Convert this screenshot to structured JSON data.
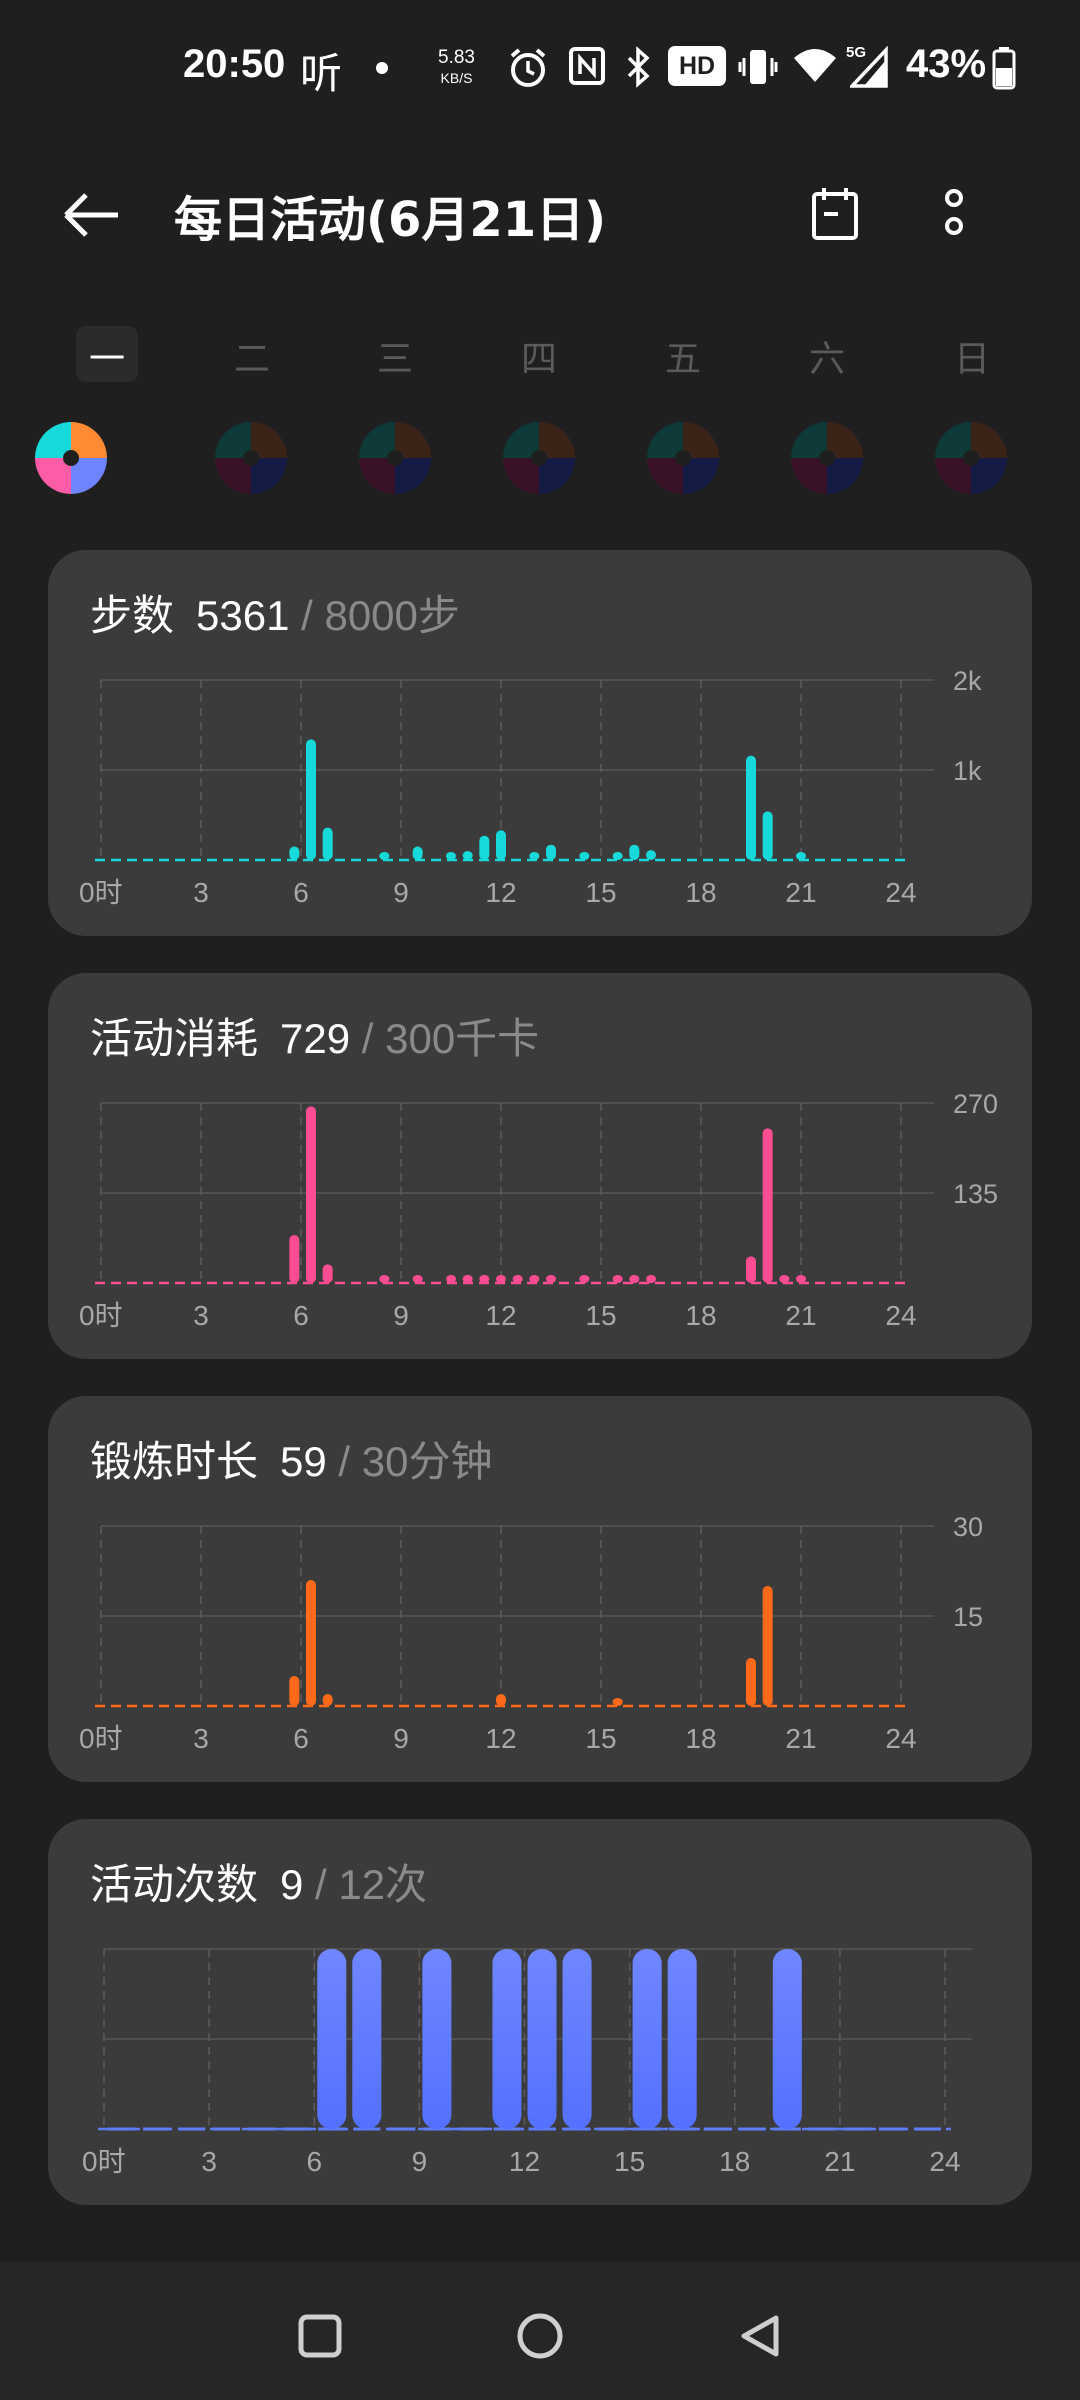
{
  "status_bar": {
    "time": "20:50",
    "ting_glyph": "听",
    "net_speed_value": "5.83",
    "net_speed_unit": "KB/S",
    "hd_badge": "HD",
    "signal_label": "5G",
    "battery": "43%",
    "icons": [
      "alarm-icon",
      "nfc-icon",
      "bluetooth-icon",
      "hd-icon",
      "vibrate-icon",
      "wifi-icon",
      "signal-icon",
      "battery-icon"
    ]
  },
  "header": {
    "title": "每日活动(6月21日)"
  },
  "week": {
    "days": [
      "一",
      "二",
      "三",
      "四",
      "五",
      "六",
      "日"
    ],
    "selected_index": 0
  },
  "cards": [
    {
      "label": "步数",
      "value": "5361",
      "goal": " / 8000步",
      "color": "#18d9d9",
      "chart_data": {
        "type": "bar",
        "x_ticks": [
          "0时",
          "3",
          "6",
          "9",
          "12",
          "15",
          "18",
          "21",
          "24"
        ],
        "y_ticks": [
          "2k",
          "1k"
        ],
        "ylim": [
          0,
          2000
        ],
        "hours": [
          0,
          1,
          2,
          3,
          4,
          5,
          6,
          7,
          8,
          9,
          10,
          11,
          12,
          13,
          14,
          15,
          16,
          17,
          18,
          19,
          20,
          21,
          22,
          23
        ],
        "values": [
          [
            5.8,
            150
          ],
          [
            6.3,
            1340
          ],
          [
            6.8,
            360
          ],
          [
            8.5,
            40
          ],
          [
            9.5,
            150
          ],
          [
            10.5,
            60
          ],
          [
            11,
            100
          ],
          [
            11.5,
            270
          ],
          [
            12,
            330
          ],
          [
            13,
            50
          ],
          [
            13.5,
            170
          ],
          [
            14.5,
            60
          ],
          [
            15.5,
            90
          ],
          [
            16,
            170
          ],
          [
            16.5,
            110
          ],
          [
            19.5,
            1160
          ],
          [
            20,
            540
          ],
          [
            21,
            50
          ]
        ]
      }
    },
    {
      "label": "活动消耗",
      "value": "729",
      "goal": " / 300千卡",
      "color": "#ff4d94",
      "chart_data": {
        "type": "bar",
        "x_ticks": [
          "0时",
          "3",
          "6",
          "9",
          "12",
          "15",
          "18",
          "21",
          "24"
        ],
        "y_ticks": [
          "270",
          "135"
        ],
        "ylim": [
          0,
          270
        ],
        "values": [
          [
            5.8,
            72
          ],
          [
            6.3,
            265
          ],
          [
            6.8,
            28
          ],
          [
            8.5,
            6
          ],
          [
            9.5,
            8
          ],
          [
            10.5,
            6
          ],
          [
            11,
            7
          ],
          [
            11.5,
            12
          ],
          [
            12,
            12
          ],
          [
            12.5,
            7
          ],
          [
            13,
            8
          ],
          [
            13.5,
            8
          ],
          [
            14.5,
            7
          ],
          [
            15.5,
            8
          ],
          [
            16,
            8
          ],
          [
            16.5,
            7
          ],
          [
            19.5,
            40
          ],
          [
            20,
            232
          ],
          [
            20.5,
            8
          ],
          [
            21,
            8
          ]
        ]
      }
    },
    {
      "label": "锻炼时长",
      "value": "59",
      "goal": " / 30分钟",
      "color": "#ff6a1a",
      "chart_data": {
        "type": "bar",
        "x_ticks": [
          "0时",
          "3",
          "6",
          "9",
          "12",
          "15",
          "18",
          "21",
          "24"
        ],
        "y_ticks": [
          "30",
          "15"
        ],
        "ylim": [
          0,
          30
        ],
        "values": [
          [
            5.8,
            5
          ],
          [
            6.3,
            21
          ],
          [
            6.8,
            2
          ],
          [
            12,
            2
          ],
          [
            15.5,
            1
          ],
          [
            19.5,
            8
          ],
          [
            20,
            20
          ]
        ]
      }
    },
    {
      "label": "活动次数",
      "value": "9",
      "goal": " / 12次",
      "color": "#5e7cff",
      "chart_data": {
        "type": "bar",
        "x_ticks": [
          "0时",
          "3",
          "6",
          "9",
          "12",
          "15",
          "18",
          "21",
          "24"
        ],
        "ylim": [
          0,
          1
        ],
        "values": [
          [
            6,
            1
          ],
          [
            7,
            1
          ],
          [
            9,
            1
          ],
          [
            11,
            1
          ],
          [
            12,
            1
          ],
          [
            13,
            1
          ],
          [
            15,
            1
          ],
          [
            16,
            1
          ],
          [
            19,
            1
          ]
        ]
      }
    }
  ],
  "nav": {
    "buttons": [
      "recent-apps-icon",
      "home-icon",
      "back-nav-icon"
    ]
  }
}
